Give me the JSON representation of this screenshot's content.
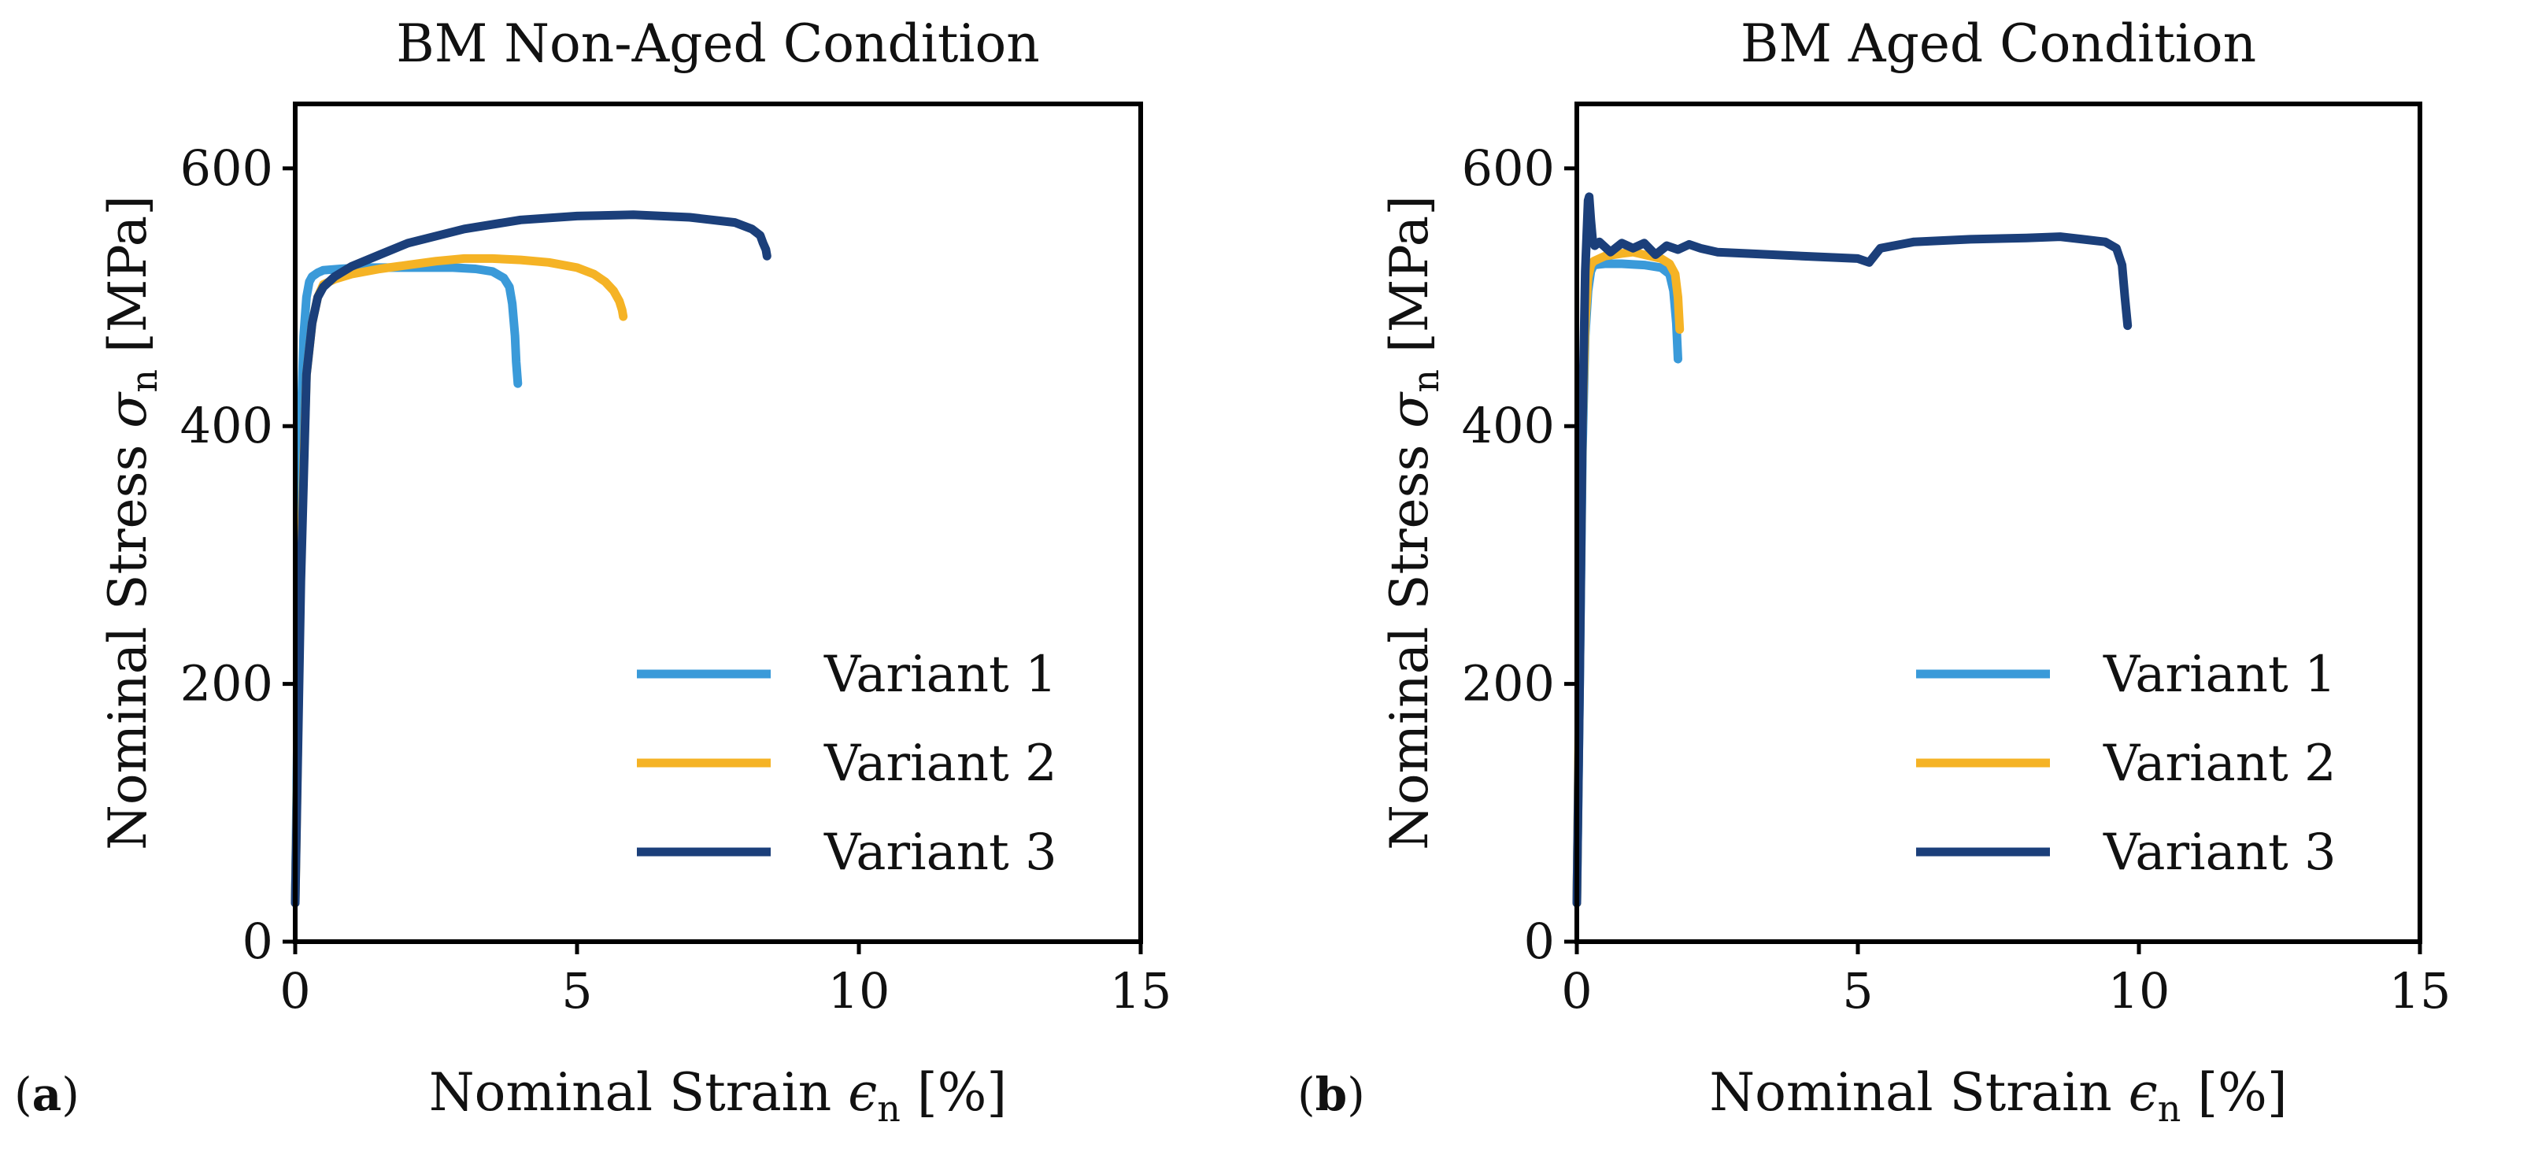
{
  "colors": {
    "variant1": "#3a9ad9",
    "variant2": "#f5b325",
    "variant3": "#1b3f7a",
    "axes": "#000000",
    "background": "#ffffff"
  },
  "chart_data": [
    {
      "type": "line",
      "panel_label": "a",
      "title": "BM Non-Aged Condition",
      "xlabel": "Nominal Strain",
      "xlabel_symbol": "ϵ",
      "xlabel_subscript": "n",
      "xlabel_unit": "[%]",
      "ylabel": "Nominal Stress",
      "ylabel_symbol": "σ",
      "ylabel_subscript": "n",
      "ylabel_unit": "[MPa]",
      "xlim": [
        0,
        15
      ],
      "ylim": [
        0,
        650
      ],
      "xticks": [
        0,
        5,
        10,
        15
      ],
      "xtick_labels": [
        "0",
        "5",
        "10",
        "15"
      ],
      "yticks": [
        0,
        200,
        400,
        600
      ],
      "ytick_labels": [
        "0",
        "200",
        "400",
        "600"
      ],
      "grid": false,
      "legend_position": "lower-right",
      "series": [
        {
          "name": "Variant 1",
          "color_key": "variant1",
          "x": [
            0,
            0.05,
            0.1,
            0.15,
            0.2,
            0.25,
            0.3,
            0.4,
            0.5,
            0.8,
            1.2,
            2.0,
            2.8,
            3.2,
            3.5,
            3.7,
            3.8,
            3.85,
            3.9,
            3.92,
            3.95
          ],
          "y": [
            30,
            200,
            400,
            470,
            500,
            512,
            516,
            519,
            521,
            522,
            523,
            523,
            523,
            522,
            520,
            515,
            508,
            495,
            470,
            450,
            433
          ]
        },
        {
          "name": "Variant 2",
          "color_key": "variant2",
          "x": [
            0,
            0.1,
            0.2,
            0.3,
            0.4,
            0.5,
            0.7,
            1.0,
            1.5,
            2.0,
            2.5,
            3.0,
            3.5,
            4.0,
            4.5,
            5.0,
            5.3,
            5.5,
            5.65,
            5.75,
            5.8,
            5.82
          ],
          "y": [
            30,
            300,
            440,
            480,
            500,
            510,
            514,
            518,
            522,
            525,
            528,
            530,
            530,
            529,
            527,
            523,
            518,
            512,
            505,
            497,
            490,
            485
          ]
        },
        {
          "name": "Variant 3",
          "color_key": "variant3",
          "x": [
            0,
            0.1,
            0.2,
            0.3,
            0.4,
            0.5,
            0.7,
            1.0,
            1.5,
            2.0,
            3.0,
            4.0,
            5.0,
            6.0,
            7.0,
            7.8,
            8.1,
            8.25,
            8.3,
            8.35,
            8.37
          ],
          "y": [
            30,
            280,
            440,
            480,
            500,
            508,
            516,
            524,
            533,
            542,
            553,
            560,
            563,
            564,
            562,
            558,
            553,
            548,
            542,
            537,
            532
          ]
        }
      ]
    },
    {
      "type": "line",
      "panel_label": "b",
      "title": "BM Aged Condition",
      "xlabel": "Nominal Strain",
      "xlabel_symbol": "ϵ",
      "xlabel_subscript": "n",
      "xlabel_unit": "[%]",
      "ylabel": "Nominal Stress",
      "ylabel_symbol": "σ",
      "ylabel_subscript": "n",
      "ylabel_unit": "[MPa]",
      "xlim": [
        0,
        15
      ],
      "ylim": [
        0,
        650
      ],
      "xticks": [
        0,
        5,
        10,
        15
      ],
      "xtick_labels": [
        "0",
        "5",
        "10",
        "15"
      ],
      "yticks": [
        0,
        200,
        400,
        600
      ],
      "ytick_labels": [
        "0",
        "200",
        "400",
        "600"
      ],
      "grid": false,
      "legend_position": "lower-right",
      "series": [
        {
          "name": "Variant 1",
          "color_key": "variant1",
          "x": [
            0,
            0.05,
            0.1,
            0.15,
            0.2,
            0.25,
            0.3,
            0.5,
            0.8,
            1.2,
            1.5,
            1.65,
            1.72,
            1.77,
            1.8
          ],
          "y": [
            30,
            200,
            380,
            470,
            505,
            520,
            525,
            526,
            526,
            525,
            523,
            518,
            505,
            480,
            452
          ]
        },
        {
          "name": "Variant 2",
          "color_key": "variant2",
          "x": [
            0,
            0.05,
            0.1,
            0.15,
            0.2,
            0.25,
            0.3,
            0.5,
            0.8,
            1.0,
            1.3,
            1.5,
            1.65,
            1.75,
            1.8,
            1.83
          ],
          "y": [
            30,
            220,
            400,
            480,
            515,
            525,
            528,
            532,
            534,
            535,
            532,
            530,
            526,
            518,
            500,
            475
          ]
        },
        {
          "name": "Variant 3",
          "color_key": "variant3",
          "x": [
            0,
            0.05,
            0.1,
            0.15,
            0.2,
            0.22,
            0.25,
            0.28,
            0.32,
            0.4,
            0.6,
            0.8,
            1.0,
            1.2,
            1.4,
            1.6,
            1.8,
            2.0,
            2.2,
            2.5,
            3.0,
            4.0,
            5.0,
            5.2,
            5.4,
            6.0,
            7.0,
            8.0,
            8.6,
            9.0,
            9.4,
            9.6,
            9.7,
            9.75,
            9.8
          ],
          "y": [
            30,
            200,
            400,
            520,
            575,
            578,
            560,
            545,
            540,
            543,
            535,
            542,
            538,
            542,
            533,
            540,
            537,
            541,
            538,
            535,
            534,
            532,
            530,
            527,
            538,
            543,
            545,
            546,
            547,
            545,
            543,
            538,
            525,
            500,
            478
          ]
        }
      ]
    }
  ]
}
